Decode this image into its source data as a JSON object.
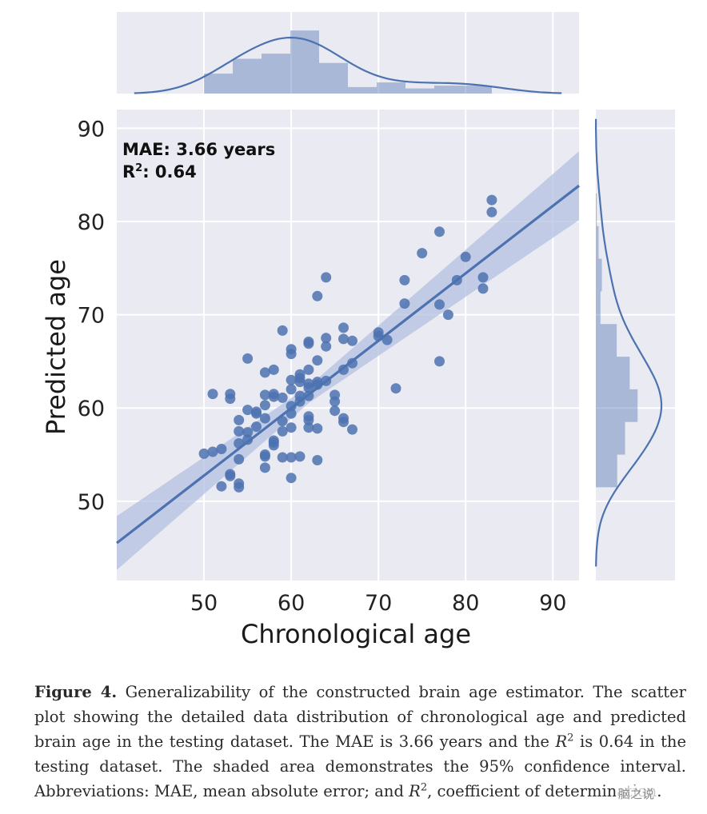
{
  "colors": {
    "panel": "#eaeaf2",
    "series": "#4c72b0",
    "ci": "#b3c0e0"
  },
  "chart_data": {
    "type": "scatter",
    "xlabel": "Chronological age",
    "ylabel": "Predicted age",
    "xlim": [
      40,
      93
    ],
    "ylim": [
      41.5,
      92
    ],
    "xticks": [
      50,
      60,
      70,
      80,
      90
    ],
    "yticks": [
      50,
      60,
      70,
      80,
      90
    ],
    "grid": true,
    "annotation": {
      "mae": "MAE: 3.66 years",
      "r2_prefix": "R",
      "r2_sup": "2",
      "r2_value": ": 0.64"
    },
    "regression": {
      "slope": 0.723,
      "intercept": 16.6,
      "x_range": [
        40,
        93
      ],
      "ci_halfwidth_at_mean": 0.9,
      "ci_growth_per_year": 0.09,
      "ci_center_x": 62
    },
    "points": [
      [
        50,
        55.1
      ],
      [
        51,
        55.3
      ],
      [
        51,
        61.5
      ],
      [
        52,
        55.6
      ],
      [
        52,
        51.6
      ],
      [
        53,
        52.7
      ],
      [
        53,
        52.9
      ],
      [
        53,
        61.5
      ],
      [
        53,
        61.0
      ],
      [
        54,
        51.9
      ],
      [
        54,
        51.5
      ],
      [
        54,
        54.5
      ],
      [
        54,
        56.2
      ],
      [
        54,
        57.5
      ],
      [
        54,
        58.7
      ],
      [
        55,
        57.4
      ],
      [
        55,
        56.6
      ],
      [
        55,
        59.8
      ],
      [
        55,
        65.3
      ],
      [
        56,
        59.4
      ],
      [
        56,
        58.0
      ],
      [
        56,
        59.6
      ],
      [
        57,
        54.8
      ],
      [
        57,
        55.0
      ],
      [
        57,
        53.6
      ],
      [
        57,
        58.9
      ],
      [
        57,
        60.3
      ],
      [
        57,
        61.4
      ],
      [
        57,
        63.8
      ],
      [
        58,
        64.1
      ],
      [
        58,
        61.5
      ],
      [
        58,
        61.2
      ],
      [
        58,
        56.3
      ],
      [
        58,
        56.5
      ],
      [
        58,
        56.0
      ],
      [
        59,
        54.7
      ],
      [
        59,
        57.5
      ],
      [
        59,
        58.6
      ],
      [
        59,
        61.1
      ],
      [
        59,
        68.3
      ],
      [
        60,
        52.5
      ],
      [
        60,
        54.7
      ],
      [
        60,
        57.9
      ],
      [
        60,
        59.4
      ],
      [
        60,
        60.2
      ],
      [
        60,
        62.0
      ],
      [
        60,
        63.0
      ],
      [
        60,
        65.8
      ],
      [
        60,
        66.3
      ],
      [
        61,
        54.8
      ],
      [
        61,
        60.7
      ],
      [
        61,
        61.3
      ],
      [
        61,
        62.8
      ],
      [
        61,
        63.2
      ],
      [
        61,
        63.6
      ],
      [
        62,
        57.9
      ],
      [
        62,
        58.7
      ],
      [
        62,
        59.1
      ],
      [
        62,
        61.3
      ],
      [
        62,
        62.2
      ],
      [
        62,
        62.6
      ],
      [
        62,
        64.1
      ],
      [
        62,
        66.9
      ],
      [
        62,
        67.1
      ],
      [
        63,
        54.4
      ],
      [
        63,
        57.8
      ],
      [
        63,
        62.5
      ],
      [
        63,
        62.8
      ],
      [
        63,
        65.1
      ],
      [
        63,
        72.0
      ],
      [
        64,
        62.9
      ],
      [
        64,
        66.6
      ],
      [
        64,
        67.5
      ],
      [
        64,
        74.0
      ],
      [
        65,
        59.7
      ],
      [
        65,
        60.7
      ],
      [
        65,
        61.4
      ],
      [
        66,
        58.5
      ],
      [
        66,
        58.9
      ],
      [
        66,
        64.1
      ],
      [
        66,
        67.4
      ],
      [
        66,
        68.6
      ],
      [
        67,
        57.7
      ],
      [
        67,
        64.8
      ],
      [
        67,
        67.2
      ],
      [
        70,
        67.7
      ],
      [
        70,
        68.1
      ],
      [
        71,
        67.3
      ],
      [
        72,
        62.1
      ],
      [
        73,
        71.2
      ],
      [
        73,
        73.7
      ],
      [
        75,
        76.6
      ],
      [
        77,
        65.0
      ],
      [
        77,
        71.1
      ],
      [
        77,
        78.9
      ],
      [
        78,
        70.0
      ],
      [
        79,
        73.7
      ],
      [
        80,
        76.2
      ],
      [
        82,
        72.8
      ],
      [
        82,
        74.0
      ],
      [
        83,
        81.0
      ],
      [
        83,
        82.3
      ]
    ],
    "marginal_x": {
      "bins": [
        50,
        53.3,
        56.6,
        59.9,
        63.2,
        66.5,
        69.8,
        73.1,
        76.4,
        79.7,
        83
      ],
      "heights": [
        0.43,
        0.75,
        0.86,
        1.36,
        0.66,
        0.14,
        0.24,
        0.11,
        0.17,
        0.17
      ]
    },
    "marginal_y": {
      "bins": [
        51.5,
        55,
        58.5,
        62,
        65.5,
        69,
        72.5,
        76,
        79.5,
        83
      ],
      "heights": [
        0.46,
        0.63,
        0.9,
        0.73,
        0.45,
        0.1,
        0.13,
        0.06,
        0.02
      ]
    }
  },
  "caption": {
    "label": "Figure 4.",
    "text_1": " Generalizability of the constructed brain age estimator. The scatter plot showing the detailed data distribution of chronological age and predicted brain age in the testing dataset. The MAE is 3.66 years and the ",
    "r_letter_1": "R",
    "r_sup_1": "2",
    "text_2": " is 0.64 in the testing dataset. The shaded area demonstrates the 95% confidence interval. Abbreviations: MAE, mean absolute error; and ",
    "r_letter_2": "R",
    "r_sup_2": "2",
    "text_3": ", coefficient of determination."
  },
  "watermark": "脑之说"
}
